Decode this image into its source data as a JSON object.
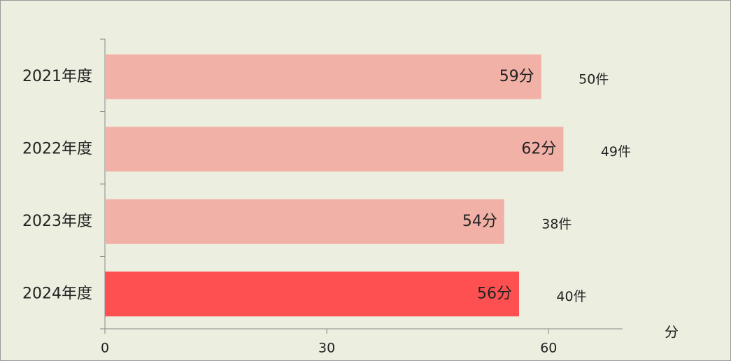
{
  "chart_data": {
    "type": "hbar",
    "categories": [
      "2021年度",
      "2022年度",
      "2023年度",
      "2024年度"
    ],
    "values": [
      59,
      62,
      54,
      56
    ],
    "value_labels": [
      "59分",
      "62分",
      "54分",
      "56分"
    ],
    "annotations": [
      "50件",
      "49件",
      "38件",
      "40件"
    ],
    "colors": [
      "#f2b1a6",
      "#f2b1a6",
      "#f2b1a6",
      "#fe5050"
    ],
    "x_label": "分",
    "xlim": [
      0,
      70
    ],
    "xticks": [
      0,
      30,
      60
    ],
    "grid": false
  }
}
